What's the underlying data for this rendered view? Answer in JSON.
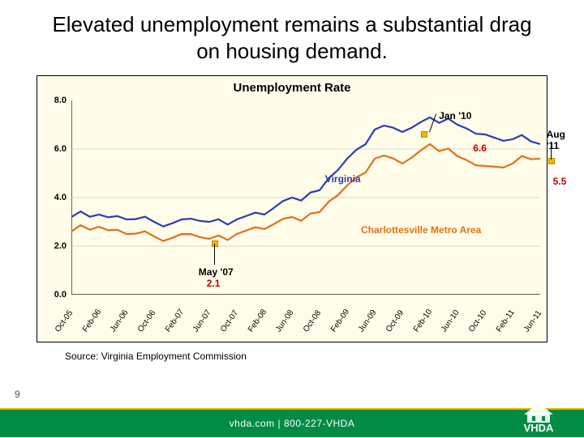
{
  "title": "Elevated unemployment remains a substantial drag on housing demand.",
  "chart": {
    "title": "Unemployment Rate",
    "type": "line",
    "background_color": "#fffde9",
    "grid_color": "#b0b0b0",
    "ylim": [
      0,
      8
    ],
    "ytick_step": 2,
    "yticks": [
      "0.0",
      "2.0",
      "4.0",
      "6.0",
      "8.0"
    ],
    "xlabels": [
      "Oct-05",
      "Feb-06",
      "Jun-06",
      "Oct-06",
      "Feb-07",
      "Jun-07",
      "Oct-07",
      "Feb-08",
      "Jun-08",
      "Oct-08",
      "Feb-09",
      "Jun-09",
      "Oct-09",
      "Feb-10",
      "Jun-10",
      "Oct-10",
      "Feb-11",
      "Jun-11"
    ],
    "series": [
      {
        "name": "Virginia",
        "color": "#2d3db0",
        "line_width": 2.2,
        "values": [
          3.2,
          3.3,
          3.1,
          3.0,
          3.1,
          3.0,
          3.1,
          3.3,
          4.0,
          4.3,
          5.6,
          6.8,
          6.7,
          7.3,
          7.0,
          6.6,
          6.4,
          6.2
        ]
      },
      {
        "name": "Charlottesville Metro Area",
        "color": "#e2701d",
        "line_width": 2.2,
        "values": [
          2.6,
          2.8,
          2.5,
          2.4,
          2.5,
          2.3,
          2.5,
          2.7,
          3.2,
          3.4,
          4.5,
          5.6,
          5.4,
          6.2,
          5.7,
          5.3,
          5.4,
          5.6
        ]
      }
    ],
    "markers": [
      {
        "label_top": "May '07",
        "label_bot": "2.1",
        "color_top": "#000",
        "color_bot": "#c00000",
        "x_idx": 5.2,
        "y": 2.1
      },
      {
        "label_top": "Jan '10",
        "label_bot": "6.6",
        "color_top": "#000",
        "color_bot": "#c00000",
        "x_idx": 12.8,
        "y": 6.6
      },
      {
        "label_top": "Aug '11",
        "label_bot": "5.5",
        "color_top": "#000",
        "color_bot": "#c00000",
        "x_idx": 17.4,
        "y": 5.5
      }
    ],
    "legend": [
      {
        "text": "Virginia",
        "color": "#2d3db0",
        "x_idx": 9.2,
        "y": 5.0
      },
      {
        "text": "Charlottesville Metro Area",
        "color": "#e2701d",
        "x_idx": 10.5,
        "y": 2.9
      }
    ]
  },
  "source": "Source:  Virginia Employment Commission",
  "page_number": "9",
  "footer": "vhda.com | 800-227-VHDA",
  "brand": "VHDA",
  "colors": {
    "footer_bg": "#008c44",
    "accent_yellow": "#f7b500"
  }
}
